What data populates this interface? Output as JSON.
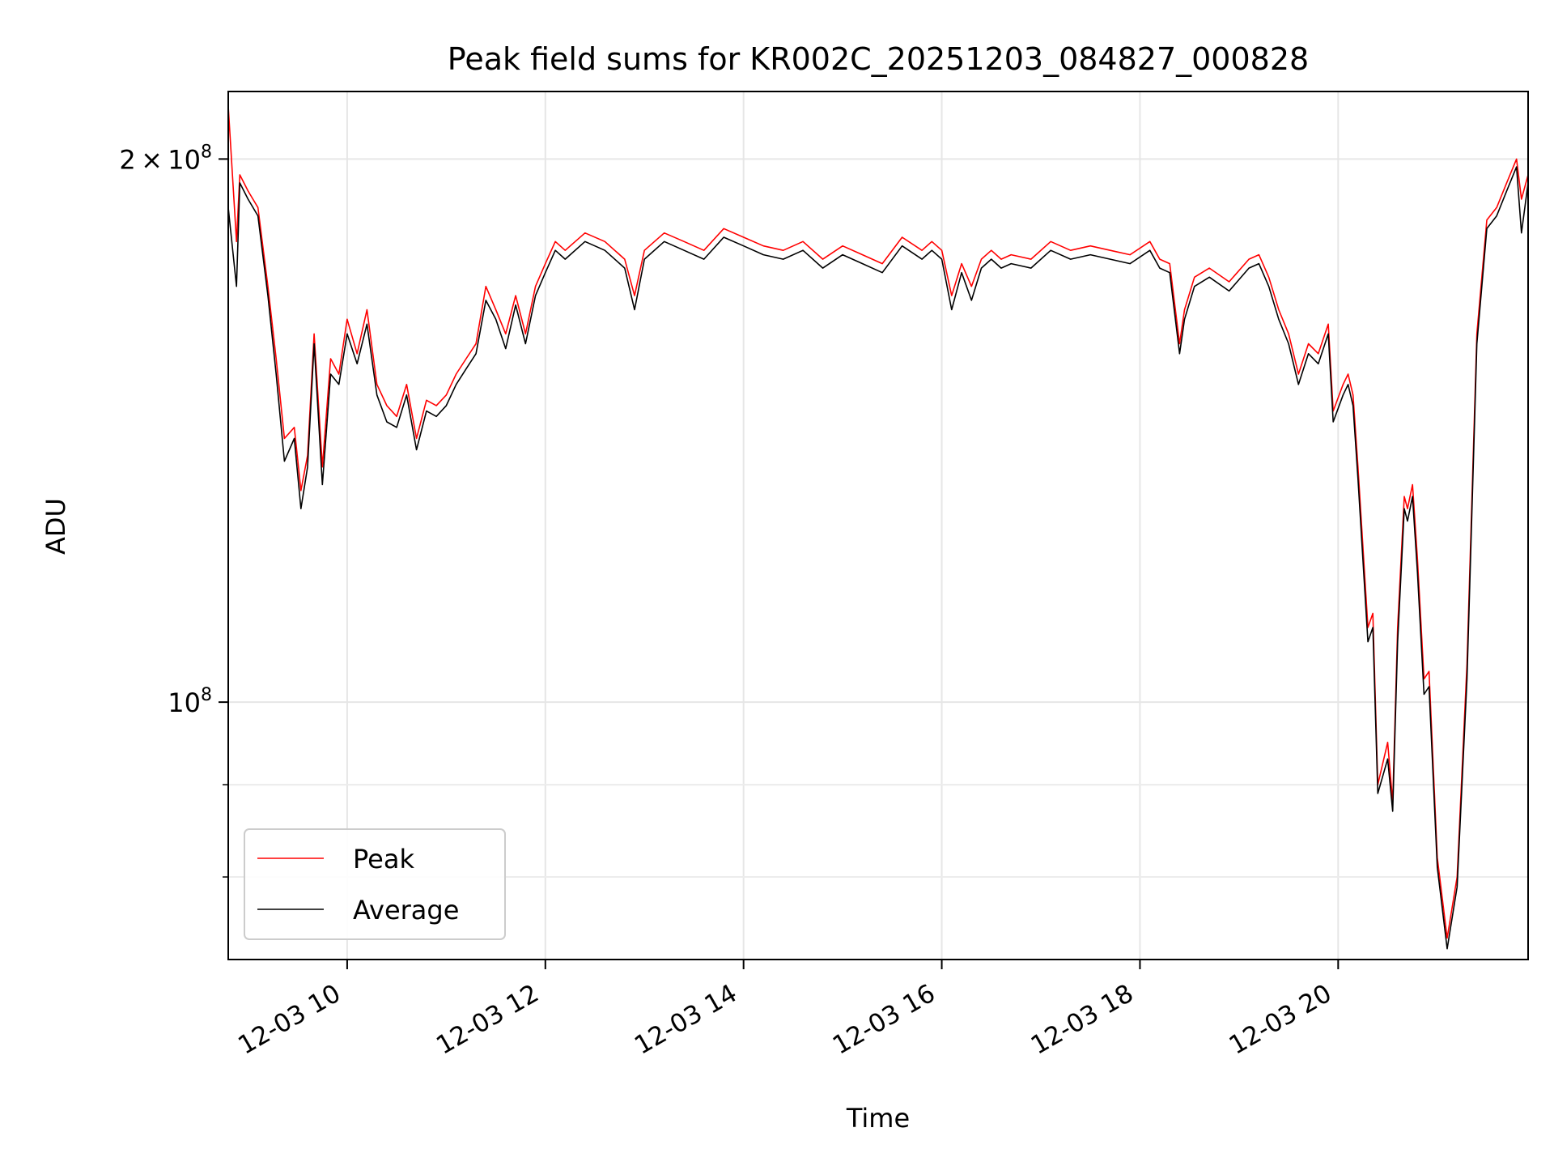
{
  "chart_data": {
    "type": "line",
    "title": "Peak field sums for KR002C_20251203_084827_000828",
    "xlabel": "Time",
    "ylabel": "ADU",
    "yscale": "log",
    "grid": true,
    "legend_position": "lower-left",
    "xlim": [
      "12-03 08:48",
      "12-03 21:55"
    ],
    "ylim": [
      72000000,
      218000000
    ],
    "x_ticks": [
      "12-03 10",
      "12-03 12",
      "12-03 14",
      "12-03 16",
      "12-03 18",
      "12-03 20"
    ],
    "y_ticks": [
      {
        "value": 100000000,
        "label": "10^8"
      },
      {
        "value": 200000000,
        "label": "2×10^8"
      }
    ],
    "y_minor_ticks": [
      80000000,
      90000000
    ],
    "x_unit": "hours",
    "series": [
      {
        "name": "Peak",
        "color": "#ff0000",
        "x": [
          "12-03 08:48",
          "12-03 08:53",
          "12-03 08:55",
          "12-03 09:00",
          "12-03 09:06",
          "12-03 09:12",
          "12-03 09:17",
          "12-03 09:22",
          "12-03 09:28",
          "12-03 09:32",
          "12-03 09:36",
          "12-03 09:40",
          "12-03 09:45",
          "12-03 09:50",
          "12-03 09:55",
          "12-03 10:00",
          "12-03 10:06",
          "12-03 10:12",
          "12-03 10:18",
          "12-03 10:24",
          "12-03 10:30",
          "12-03 10:36",
          "12-03 10:42",
          "12-03 10:48",
          "12-03 10:54",
          "12-03 11:00",
          "12-03 11:06",
          "12-03 11:12",
          "12-03 11:18",
          "12-03 11:24",
          "12-03 11:30",
          "12-03 11:36",
          "12-03 11:42",
          "12-03 11:48",
          "12-03 11:54",
          "12-03 12:00",
          "12-03 12:06",
          "12-03 12:12",
          "12-03 12:24",
          "12-03 12:36",
          "12-03 12:48",
          "12-03 12:54",
          "12-03 13:00",
          "12-03 13:12",
          "12-03 13:24",
          "12-03 13:36",
          "12-03 13:48",
          "12-03 14:00",
          "12-03 14:12",
          "12-03 14:24",
          "12-03 14:36",
          "12-03 14:48",
          "12-03 15:00",
          "12-03 15:12",
          "12-03 15:24",
          "12-03 15:36",
          "12-03 15:48",
          "12-03 15:54",
          "12-03 16:00",
          "12-03 16:06",
          "12-03 16:12",
          "12-03 16:18",
          "12-03 16:24",
          "12-03 16:30",
          "12-03 16:36",
          "12-03 16:42",
          "12-03 16:54",
          "12-03 17:06",
          "12-03 17:18",
          "12-03 17:30",
          "12-03 17:42",
          "12-03 17:54",
          "12-03 18:06",
          "12-03 18:12",
          "12-03 18:18",
          "12-03 18:24",
          "12-03 18:27",
          "12-03 18:33",
          "12-03 18:42",
          "12-03 18:54",
          "12-03 19:06",
          "12-03 19:12",
          "12-03 19:18",
          "12-03 19:24",
          "12-03 19:30",
          "12-03 19:36",
          "12-03 19:42",
          "12-03 19:48",
          "12-03 19:54",
          "12-03 19:57",
          "12-03 20:03",
          "12-03 20:06",
          "12-03 20:09",
          "12-03 20:12",
          "12-03 20:18",
          "12-03 20:21",
          "12-03 20:24",
          "12-03 20:30",
          "12-03 20:33",
          "12-03 20:36",
          "12-03 20:40",
          "12-03 20:42",
          "12-03 20:45",
          "12-03 20:48",
          "12-03 20:52",
          "12-03 20:55",
          "12-03 21:00",
          "12-03 21:06",
          "12-03 21:12",
          "12-03 21:18",
          "12-03 21:24",
          "12-03 21:30",
          "12-03 21:36",
          "12-03 21:42",
          "12-03 21:48",
          "12-03 21:51",
          "12-03 21:55"
        ],
        "y": [
          214000000,
          180000000,
          196000000,
          192000000,
          188000000,
          170000000,
          155000000,
          140000000,
          142000000,
          131000000,
          137000000,
          160000000,
          135000000,
          155000000,
          152000000,
          163000000,
          156000000,
          165000000,
          150000000,
          146000000,
          144000000,
          150000000,
          140000000,
          147000000,
          146000000,
          148000000,
          152000000,
          155000000,
          158000000,
          170000000,
          165000000,
          160000000,
          168000000,
          160000000,
          170000000,
          175000000,
          180000000,
          178000000,
          182000000,
          180000000,
          176000000,
          168000000,
          178000000,
          182000000,
          180000000,
          178000000,
          183000000,
          181000000,
          179000000,
          178000000,
          180000000,
          176000000,
          179000000,
          177000000,
          175000000,
          181000000,
          178000000,
          180000000,
          178000000,
          168000000,
          175000000,
          170000000,
          176000000,
          178000000,
          176000000,
          177000000,
          176000000,
          180000000,
          178000000,
          179000000,
          178000000,
          177000000,
          180000000,
          176000000,
          175000000,
          158000000,
          165000000,
          172000000,
          174000000,
          171000000,
          176000000,
          177000000,
          172000000,
          165000000,
          160000000,
          152000000,
          158000000,
          156000000,
          162000000,
          145000000,
          150000000,
          152000000,
          148000000,
          135000000,
          110000000,
          112000000,
          90000000,
          95000000,
          88000000,
          110000000,
          130000000,
          128000000,
          132000000,
          120000000,
          103000000,
          104000000,
          82000000,
          74000000,
          80000000,
          105000000,
          160000000,
          185000000,
          188000000,
          194000000,
          200000000,
          190000000,
          196000000
        ]
      },
      {
        "name": "Average",
        "color": "#000000",
        "x": [
          "12-03 08:48",
          "12-03 08:53",
          "12-03 08:55",
          "12-03 09:00",
          "12-03 09:06",
          "12-03 09:12",
          "12-03 09:17",
          "12-03 09:22",
          "12-03 09:28",
          "12-03 09:32",
          "12-03 09:36",
          "12-03 09:40",
          "12-03 09:45",
          "12-03 09:50",
          "12-03 09:55",
          "12-03 10:00",
          "12-03 10:06",
          "12-03 10:12",
          "12-03 10:18",
          "12-03 10:24",
          "12-03 10:30",
          "12-03 10:36",
          "12-03 10:42",
          "12-03 10:48",
          "12-03 10:54",
          "12-03 11:00",
          "12-03 11:06",
          "12-03 11:12",
          "12-03 11:18",
          "12-03 11:24",
          "12-03 11:30",
          "12-03 11:36",
          "12-03 11:42",
          "12-03 11:48",
          "12-03 11:54",
          "12-03 12:00",
          "12-03 12:06",
          "12-03 12:12",
          "12-03 12:24",
          "12-03 12:36",
          "12-03 12:48",
          "12-03 12:54",
          "12-03 13:00",
          "12-03 13:12",
          "12-03 13:24",
          "12-03 13:36",
          "12-03 13:48",
          "12-03 14:00",
          "12-03 14:12",
          "12-03 14:24",
          "12-03 14:36",
          "12-03 14:48",
          "12-03 15:00",
          "12-03 15:12",
          "12-03 15:24",
          "12-03 15:36",
          "12-03 15:48",
          "12-03 15:54",
          "12-03 16:00",
          "12-03 16:06",
          "12-03 16:12",
          "12-03 16:18",
          "12-03 16:24",
          "12-03 16:30",
          "12-03 16:36",
          "12-03 16:42",
          "12-03 16:54",
          "12-03 17:06",
          "12-03 17:18",
          "12-03 17:30",
          "12-03 17:42",
          "12-03 17:54",
          "12-03 18:06",
          "12-03 18:12",
          "12-03 18:18",
          "12-03 18:24",
          "12-03 18:27",
          "12-03 18:33",
          "12-03 18:42",
          "12-03 18:54",
          "12-03 19:06",
          "12-03 19:12",
          "12-03 19:18",
          "12-03 19:24",
          "12-03 19:30",
          "12-03 19:36",
          "12-03 19:42",
          "12-03 19:48",
          "12-03 19:54",
          "12-03 19:57",
          "12-03 20:03",
          "12-03 20:06",
          "12-03 20:09",
          "12-03 20:12",
          "12-03 20:18",
          "12-03 20:21",
          "12-03 20:24",
          "12-03 20:30",
          "12-03 20:33",
          "12-03 20:36",
          "12-03 20:40",
          "12-03 20:42",
          "12-03 20:45",
          "12-03 20:48",
          "12-03 20:52",
          "12-03 20:55",
          "12-03 21:00",
          "12-03 21:06",
          "12-03 21:12",
          "12-03 21:18",
          "12-03 21:24",
          "12-03 21:30",
          "12-03 21:36",
          "12-03 21:42",
          "12-03 21:48",
          "12-03 21:51",
          "12-03 21:55"
        ],
        "y": [
          188000000,
          170000000,
          194000000,
          190000000,
          186000000,
          168000000,
          152000000,
          136000000,
          140000000,
          128000000,
          135000000,
          158000000,
          132000000,
          152000000,
          150000000,
          160000000,
          154000000,
          162000000,
          148000000,
          143000000,
          142000000,
          148000000,
          138000000,
          145000000,
          144000000,
          146000000,
          150000000,
          153000000,
          156000000,
          167000000,
          163000000,
          157000000,
          166000000,
          158000000,
          168000000,
          173000000,
          178000000,
          176000000,
          180000000,
          178000000,
          174000000,
          165000000,
          176000000,
          180000000,
          178000000,
          176000000,
          181000000,
          179000000,
          177000000,
          176000000,
          178000000,
          174000000,
          177000000,
          175000000,
          173000000,
          179000000,
          176000000,
          178000000,
          176000000,
          165000000,
          173000000,
          167000000,
          174000000,
          176000000,
          174000000,
          175000000,
          174000000,
          178000000,
          176000000,
          177000000,
          176000000,
          175000000,
          178000000,
          174000000,
          173000000,
          156000000,
          163000000,
          170000000,
          172000000,
          169000000,
          174000000,
          175000000,
          170000000,
          163000000,
          158000000,
          150000000,
          156000000,
          154000000,
          160000000,
          143000000,
          148000000,
          150000000,
          146000000,
          133000000,
          108000000,
          110000000,
          89000000,
          93000000,
          87000000,
          108000000,
          128000000,
          126000000,
          130000000,
          118000000,
          101000000,
          102000000,
          81000000,
          73000000,
          79000000,
          103000000,
          158000000,
          183000000,
          186000000,
          192000000,
          198000000,
          182000000,
          194000000
        ]
      }
    ]
  }
}
